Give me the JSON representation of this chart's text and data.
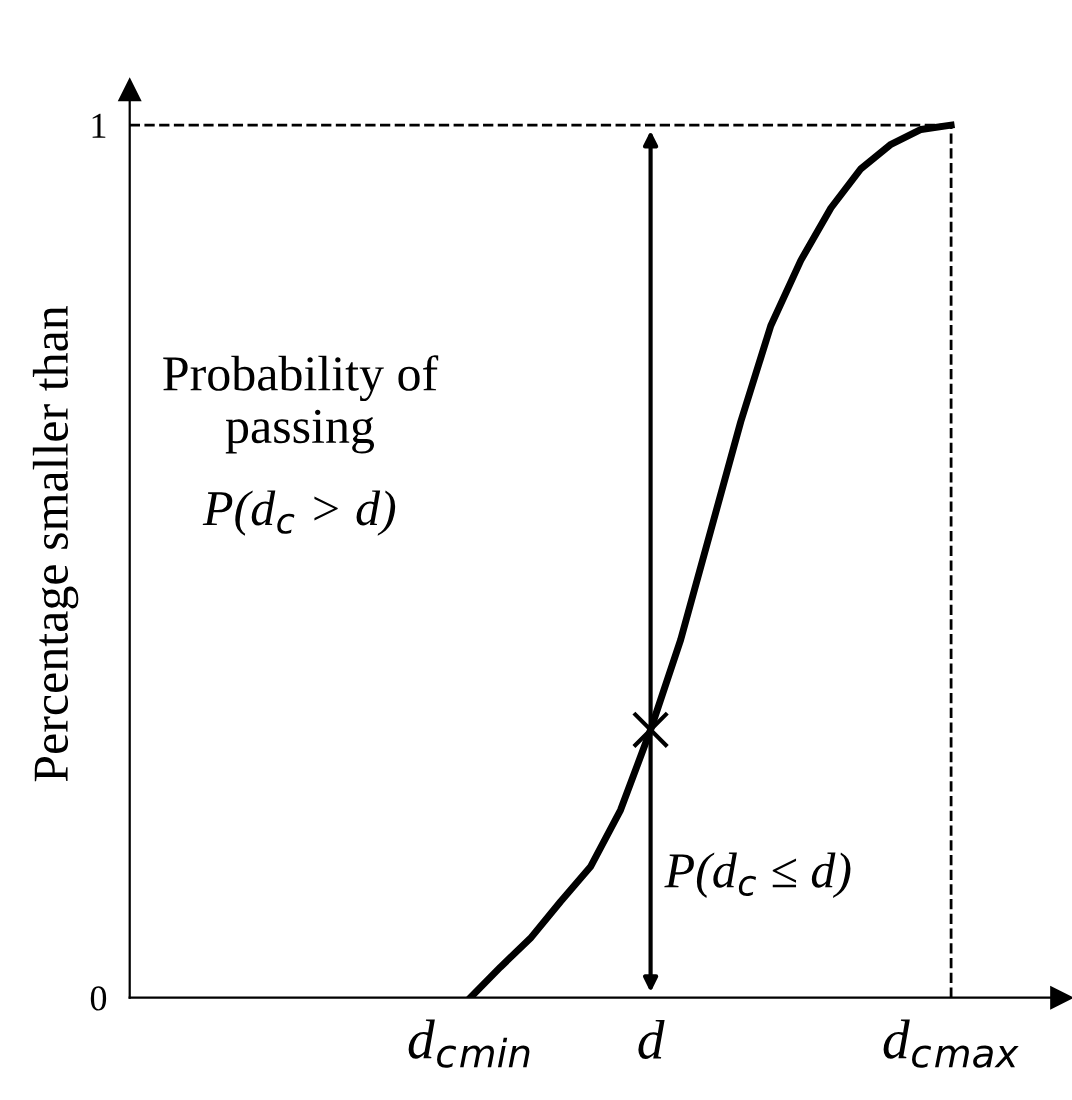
{
  "chart_data": {
    "type": "line",
    "ylabel": "Percentage smaller than",
    "categories": [
      "d$_{c}$$_{min}$",
      null,
      null,
      null,
      null,
      null,
      "d",
      null,
      null,
      null,
      null,
      null,
      null,
      null,
      null,
      null,
      "d$_{c}$$_{max}$"
    ],
    "series": [
      {
        "color": "#000000",
        "values": [
          0,
          0.035,
          0.068,
          0.11,
          0.15,
          0.215,
          0.307,
          0.41,
          0.535,
          0.66,
          0.77,
          0.845,
          0.905,
          0.95,
          0.978,
          0.995,
          1
        ]
      }
    ],
    "ylim": [
      0,
      1.04
    ],
    "yticks": [
      0,
      1
    ],
    "ref_lines": [
      {
        "axis": "y",
        "value": 1,
        "line_style": "dashed",
        "color": "#000000"
      },
      {
        "axis": "x",
        "value": "d$_{c}$$_{max}$",
        "line_style": "dashed",
        "color": "#000000"
      }
    ],
    "annotations": [
      "Probability of passing",
      "P(d$_{c}$ > d)",
      "P(d$_{c}$ ≤ d)"
    ],
    "grid": false,
    "marker": "none",
    "line_style": "solid"
  }
}
